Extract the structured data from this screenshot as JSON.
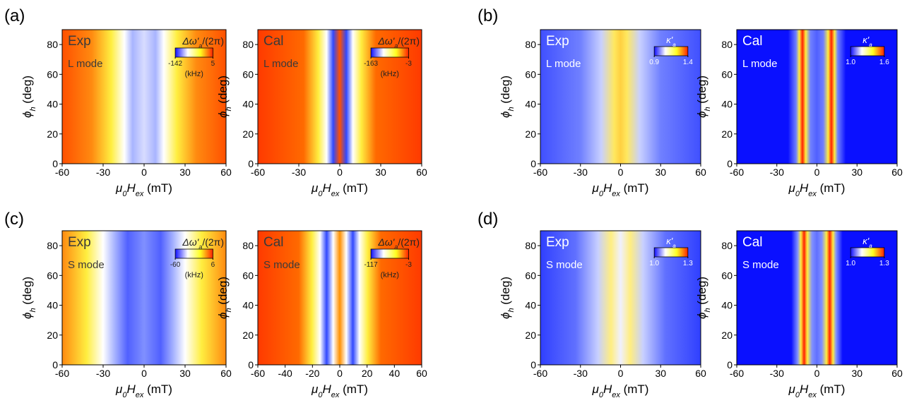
{
  "panel_labels": [
    "(a)",
    "(b)",
    "(c)",
    "(d)"
  ],
  "chart_data": [
    {
      "type": "heatmap",
      "annotation": "Exp",
      "mode": "L mode",
      "xlabel": [
        "μ",
        "0",
        "H",
        "ex",
        " (mT)"
      ],
      "ylabel": [
        "ϕ",
        "h",
        " (deg)"
      ],
      "xlim": [
        -60,
        60
      ],
      "xticks": [
        -60,
        -30,
        0,
        30,
        60
      ],
      "ylim": [
        0,
        90
      ],
      "yticks": [
        0,
        20,
        40,
        60,
        80
      ],
      "colorbar_title": [
        "Δω'",
        "a",
        "/(2π)"
      ],
      "cticks": [
        -142,
        5
      ],
      "colorbar_unit": "(kHz)",
      "colors": [
        "#1010ff",
        "#ffffff",
        "#ffff20",
        "#ff2000"
      ]
    },
    {
      "type": "heatmap",
      "annotation": "Cal",
      "mode": "L mode",
      "xlabel": [
        "μ",
        "0",
        "H",
        "ex",
        " (mT)"
      ],
      "ylabel": [
        "ϕ",
        "h",
        " (deg)"
      ],
      "xlim": [
        -60,
        60
      ],
      "xticks": [
        -60,
        -30,
        0,
        30,
        60
      ],
      "ylim": [
        0,
        90
      ],
      "yticks": [
        0,
        20,
        40,
        60,
        80
      ],
      "colorbar_title": [
        "Δω'",
        "a",
        "/(2π)"
      ],
      "cticks": [
        -163,
        -3
      ],
      "colorbar_unit": "(kHz)",
      "colors": [
        "#1010ff",
        "#ffffff",
        "#ffff20",
        "#ff2000"
      ]
    },
    {
      "type": "heatmap",
      "annotation": "Exp",
      "mode": "L mode",
      "xlabel": [
        "μ",
        "0",
        "H",
        "ex",
        " (mT)"
      ],
      "ylabel": [
        "ϕ",
        "h",
        " (deg)"
      ],
      "xlim": [
        -60,
        60
      ],
      "xticks": [
        -60,
        -30,
        0,
        30,
        60
      ],
      "ylim": [
        0,
        90
      ],
      "yticks": [
        0,
        20,
        40,
        60,
        80
      ],
      "colorbar_title": [
        "κ'",
        "a"
      ],
      "cticks": [
        0.9,
        1.4
      ],
      "colors": [
        "#1010ff",
        "#ffffff",
        "#ffff20",
        "#ff2000"
      ]
    },
    {
      "type": "heatmap",
      "annotation": "Cal",
      "mode": "L mode",
      "xlabel": [
        "μ",
        "0",
        "H",
        "ex",
        " (mT)"
      ],
      "ylabel": [
        "ϕ",
        "h",
        " (deg)"
      ],
      "xlim": [
        -60,
        60
      ],
      "xticks": [
        -60,
        -30,
        0,
        30,
        60
      ],
      "ylim": [
        0,
        90
      ],
      "yticks": [
        0,
        20,
        40,
        60,
        80
      ],
      "colorbar_title": [
        "κ'",
        "a"
      ],
      "cticks": [
        {
          "value": 1,
          "label": "1.0"
        },
        1.6
      ],
      "colors": [
        "#1010ff",
        "#ffffff",
        "#ffff20",
        "#ff2000"
      ]
    },
    {
      "type": "heatmap",
      "annotation": "Exp",
      "mode": "S mode",
      "xlabel": [
        "μ",
        "0",
        "H",
        "ex",
        " (mT)"
      ],
      "ylabel": [
        "ϕ",
        "h",
        " (deg)"
      ],
      "xlim": [
        -60,
        60
      ],
      "xticks": [
        -60,
        -30,
        0,
        30,
        60
      ],
      "ylim": [
        0,
        90
      ],
      "yticks": [
        0,
        20,
        40,
        60,
        80
      ],
      "colorbar_title": [
        "Δω'",
        "a",
        "/(2π)"
      ],
      "cticks": [
        -60,
        6
      ],
      "colorbar_unit": "(kHz)",
      "colors": [
        "#1010ff",
        "#ffffff",
        "#ffff20",
        "#ff2000"
      ]
    },
    {
      "type": "heatmap",
      "annotation": "Cal",
      "mode": "S mode",
      "xlabel": [
        "μ",
        "0",
        "H",
        "ex",
        " (mT)"
      ],
      "ylabel": [
        "ϕ",
        "h",
        " (deg)"
      ],
      "xlim": [
        -60,
        60
      ],
      "xticks": [
        -60,
        -40,
        -20,
        0,
        20,
        40,
        60
      ],
      "ylim": [
        0,
        90
      ],
      "yticks": [
        0,
        20,
        40,
        60,
        80
      ],
      "colorbar_title": [
        "Δω'",
        "a",
        "/(2π)"
      ],
      "cticks": [
        -117,
        -3
      ],
      "colorbar_unit": "(kHz)",
      "colors": [
        "#1010ff",
        "#ffffff",
        "#ffff20",
        "#ff2000"
      ]
    },
    {
      "type": "heatmap",
      "annotation": "Exp",
      "mode": "S mode",
      "xlabel": [
        "μ",
        "0",
        "H",
        "ex",
        " (mT)"
      ],
      "ylabel": [
        "ϕ",
        "h",
        " (deg)"
      ],
      "xlim": [
        -60,
        60
      ],
      "xticks": [
        -60,
        -30,
        0,
        30,
        60
      ],
      "ylim": [
        0,
        90
      ],
      "yticks": [
        0,
        20,
        40,
        60,
        80
      ],
      "colorbar_title": [
        "κ'",
        "a"
      ],
      "cticks": [
        {
          "value": 1,
          "label": "1.0"
        },
        1.3
      ],
      "colors": [
        "#1010ff",
        "#ffffff",
        "#ffff20",
        "#ff2000"
      ]
    },
    {
      "type": "heatmap",
      "annotation": "Cal",
      "mode": "S mode",
      "xlabel": [
        "μ",
        "0",
        "H",
        "ex",
        " (mT)"
      ],
      "ylabel": [
        "ϕ",
        "h",
        " (deg)"
      ],
      "xlim": [
        -60,
        60
      ],
      "xticks": [
        -60,
        -30,
        0,
        30,
        60
      ],
      "ylim": [
        0,
        90
      ],
      "yticks": [
        0,
        20,
        40,
        60,
        80
      ],
      "colorbar_title": [
        "κ'",
        "a"
      ],
      "cticks": [
        {
          "value": 1,
          "label": "1.0"
        },
        1.3
      ],
      "colors": [
        "#1010ff",
        "#ffffff",
        "#ffff20",
        "#ff2000"
      ]
    }
  ]
}
